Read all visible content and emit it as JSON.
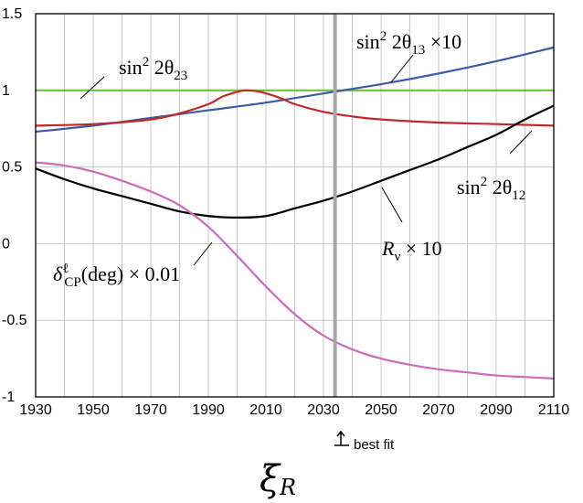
{
  "chart_data": {
    "type": "line",
    "xlabel": "ξR",
    "ylabel": "",
    "xlim": [
      1930,
      2110
    ],
    "ylim": [
      -1,
      1.5
    ],
    "grid": true,
    "x_ticks": [
      1930,
      1950,
      1970,
      1990,
      2010,
      2030,
      2050,
      2070,
      2090,
      2110
    ],
    "y_ticks": [
      -1,
      -0.5,
      0,
      0.5,
      1,
      1.5
    ],
    "y_tick_labels": [
      "-1",
      "-0.5",
      "0",
      "0.5",
      "1",
      "1.5"
    ],
    "best_fit": {
      "x": 2034,
      "label": "best fit"
    },
    "series": [
      {
        "name": "sin²2θ23",
        "color": "#6cc23a",
        "x": [
          1930,
          2110
        ],
        "y": [
          1.0,
          1.0
        ]
      },
      {
        "name": "sin²2θ13 ×10",
        "color": "#3d5ba8",
        "x": [
          1930,
          1950,
          1970,
          1990,
          2010,
          2030,
          2050,
          2070,
          2090,
          2110
        ],
        "y": [
          0.73,
          0.77,
          0.82,
          0.87,
          0.92,
          0.98,
          1.04,
          1.11,
          1.19,
          1.28
        ]
      },
      {
        "name": "sin²2θ12",
        "color": "#c0282c",
        "x": [
          1930,
          1950,
          1970,
          1980,
          1990,
          1995,
          2000,
          2003,
          2008,
          2015,
          2020,
          2030,
          2040,
          2050,
          2070,
          2090,
          2110
        ],
        "y": [
          0.77,
          0.78,
          0.81,
          0.85,
          0.91,
          0.96,
          0.99,
          1.0,
          0.99,
          0.95,
          0.91,
          0.86,
          0.83,
          0.81,
          0.79,
          0.78,
          0.77
        ]
      },
      {
        "name": "Rν × 10",
        "color": "#000000",
        "x": [
          1930,
          1940,
          1950,
          1960,
          1970,
          1980,
          1990,
          2000,
          2010,
          2020,
          2030,
          2040,
          2050,
          2060,
          2070,
          2080,
          2090,
          2100,
          2110
        ],
        "y": [
          0.49,
          0.42,
          0.36,
          0.31,
          0.26,
          0.21,
          0.18,
          0.17,
          0.18,
          0.23,
          0.28,
          0.34,
          0.41,
          0.48,
          0.55,
          0.63,
          0.71,
          0.81,
          0.9
        ]
      },
      {
        "name": "δCP(deg) × 0.01",
        "color": "#cc6cba",
        "x": [
          1930,
          1940,
          1950,
          1960,
          1970,
          1980,
          1990,
          2000,
          2010,
          2020,
          2030,
          2040,
          2050,
          2060,
          2070,
          2080,
          2090,
          2100,
          2110
        ],
        "y": [
          0.53,
          0.51,
          0.47,
          0.41,
          0.34,
          0.25,
          0.11,
          -0.08,
          -0.28,
          -0.46,
          -0.6,
          -0.69,
          -0.75,
          -0.79,
          -0.82,
          -0.84,
          -0.86,
          -0.87,
          -0.88
        ]
      }
    ],
    "annotations": {
      "s23": {
        "lead": "sin",
        "sup": "2",
        "mid": " 2θ",
        "sub": "23",
        "tail": ""
      },
      "s13": {
        "lead": "sin",
        "sup": "2",
        "mid": " 2θ",
        "sub": "13",
        "tail": "  ×10"
      },
      "s12": {
        "lead": "sin",
        "sup": "2",
        "mid": " 2θ",
        "sub": "12",
        "tail": ""
      },
      "rnu": {
        "lead": "R",
        "sub": "ν",
        "tail": " × 10"
      },
      "dcp": {
        "lead": "δ",
        "sup": "ℓ",
        "sub": "CP",
        "tail": "(deg) × 0.01"
      }
    }
  }
}
